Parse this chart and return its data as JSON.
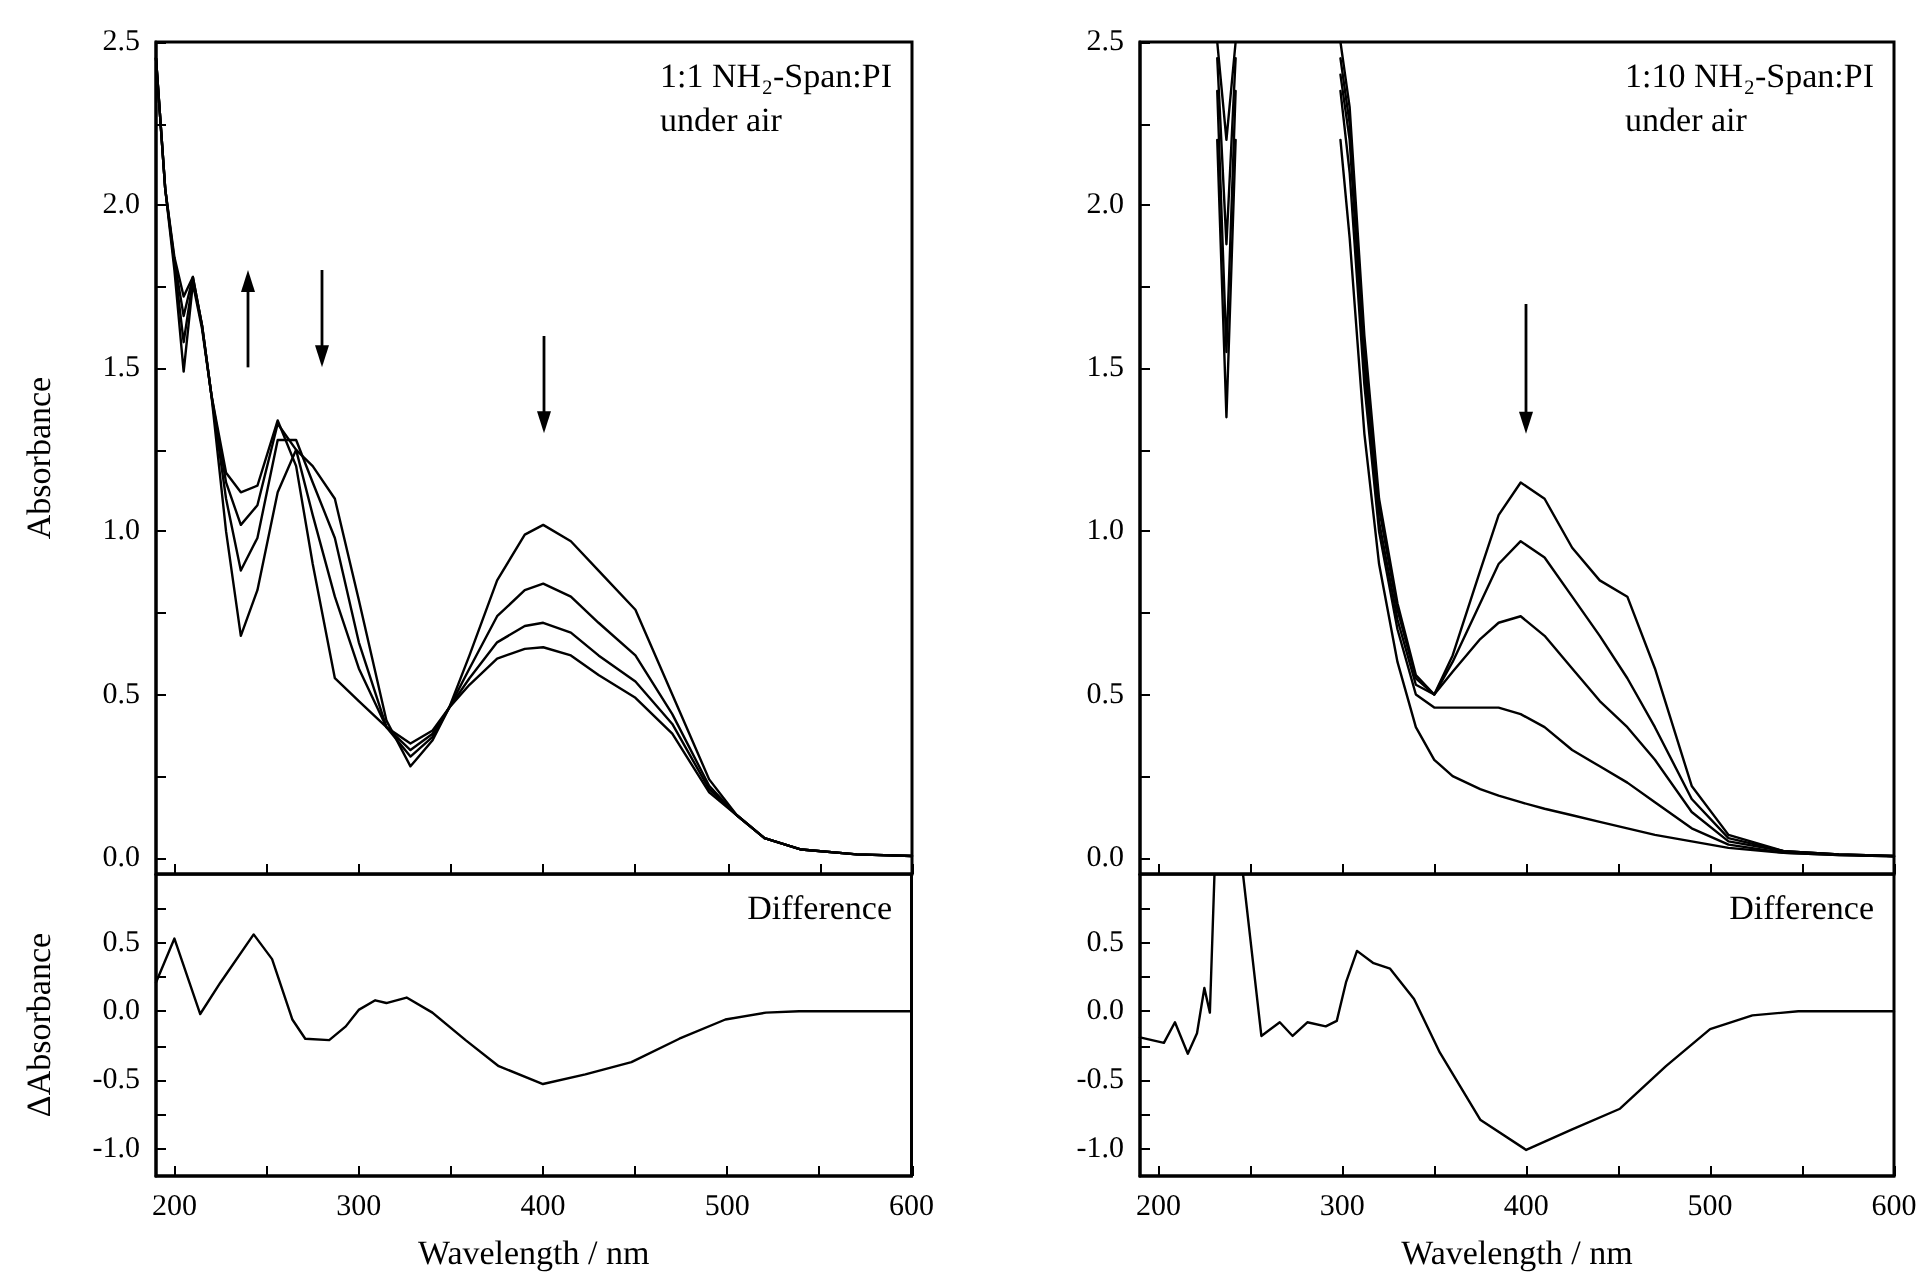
{
  "chart_data": [
    {
      "type": "line",
      "ylabel": "Absorbance",
      "annotations": [
        "1:1 NH₂-Span:PI",
        "under air"
      ],
      "marker": "none",
      "line_style": "solid",
      "tick_labels": "y",
      "xlim": [
        190,
        600
      ],
      "xticks": [
        200,
        {
          "value": 250,
          "label": null
        },
        300,
        {
          "value": 350,
          "label": null
        },
        400,
        {
          "value": 450,
          "label": null
        },
        500,
        {
          "value": 550,
          "label": null
        },
        600
      ],
      "ylim": [
        -0.05,
        2.5
      ],
      "yticks": [
        {
          "value": 0,
          "label": "0.0"
        },
        {
          "value": 0.25,
          "label": null
        },
        0.5,
        {
          "value": 0.75,
          "label": null
        },
        {
          "value": 1,
          "label": "1.0"
        },
        {
          "value": 1.25,
          "label": null
        },
        1.5,
        {
          "value": 1.75,
          "label": null
        },
        {
          "value": 2,
          "label": "2.0"
        },
        {
          "value": 2.25,
          "label": null
        },
        2.5
      ],
      "x": [
        190,
        195,
        200,
        205,
        210,
        215,
        220,
        228,
        236,
        245,
        256,
        266,
        275,
        287,
        300,
        315,
        328,
        340,
        349,
        360,
        375,
        390,
        400,
        415,
        430,
        450,
        470,
        490,
        505,
        520,
        540,
        570,
        600
      ],
      "series": [
        {
          "color": "#000000",
          "values": [
            2.45,
            2.05,
            1.8,
            1.49,
            1.76,
            1.62,
            1.42,
            1.0,
            0.68,
            0.82,
            1.12,
            1.25,
            1.2,
            1.1,
            0.79,
            0.42,
            0.28,
            0.36,
            0.46,
            0.62,
            0.85,
            0.99,
            1.02,
            0.97,
            0.88,
            0.76,
            0.5,
            0.24,
            0.13,
            0.06,
            0.025,
            0.01,
            0.005
          ]
        },
        {
          "color": "#000000",
          "values": [
            2.45,
            2.05,
            1.82,
            1.58,
            1.77,
            1.63,
            1.42,
            1.1,
            0.88,
            0.98,
            1.28,
            1.28,
            1.15,
            0.98,
            0.66,
            0.4,
            0.31,
            0.37,
            0.46,
            0.58,
            0.74,
            0.82,
            0.84,
            0.8,
            0.72,
            0.62,
            0.44,
            0.22,
            0.13,
            0.06,
            0.025,
            0.01,
            0.005
          ]
        },
        {
          "color": "#000000",
          "values": [
            2.45,
            2.05,
            1.83,
            1.66,
            1.78,
            1.63,
            1.42,
            1.15,
            1.02,
            1.08,
            1.33,
            1.25,
            1.05,
            0.8,
            0.58,
            0.4,
            0.33,
            0.38,
            0.46,
            0.55,
            0.66,
            0.71,
            0.72,
            0.69,
            0.62,
            0.54,
            0.41,
            0.21,
            0.13,
            0.06,
            0.025,
            0.01,
            0.005
          ]
        },
        {
          "color": "#000000",
          "values": [
            2.45,
            2.05,
            1.84,
            1.72,
            1.78,
            1.63,
            1.42,
            1.18,
            1.12,
            1.14,
            1.34,
            1.2,
            0.9,
            0.55,
            0.48,
            0.4,
            0.35,
            0.39,
            0.46,
            0.53,
            0.61,
            0.64,
            0.645,
            0.62,
            0.56,
            0.49,
            0.38,
            0.2,
            0.13,
            0.06,
            0.025,
            0.01,
            0.005
          ]
        }
      ]
    },
    {
      "type": "line",
      "annotations": [
        "1:10 NH₂-Span:PI",
        "under air"
      ],
      "marker": "none",
      "line_style": "solid",
      "tick_labels": "y",
      "xlim": [
        190,
        600
      ],
      "xticks": [
        200,
        {
          "value": 250,
          "label": null
        },
        300,
        {
          "value": 350,
          "label": null
        },
        400,
        {
          "value": 450,
          "label": null
        },
        500,
        {
          "value": 550,
          "label": null
        },
        600
      ],
      "ylim": [
        -0.05,
        2.5
      ],
      "yticks": [
        {
          "value": 0,
          "label": "0.0"
        },
        {
          "value": 0.25,
          "label": null
        },
        0.5,
        {
          "value": 0.75,
          "label": null
        },
        {
          "value": 1,
          "label": "1.0"
        },
        {
          "value": 1.25,
          "label": null
        },
        1.5,
        {
          "value": 1.75,
          "label": null
        },
        {
          "value": 2,
          "label": "2.0"
        },
        {
          "value": 2.25,
          "label": null
        },
        2.5
      ],
      "x": [
        232,
        237,
        242,
        270,
        299,
        304,
        312,
        320,
        330,
        340,
        350,
        360,
        375,
        385,
        397,
        410,
        425,
        440,
        455,
        470,
        490,
        510,
        540,
        570,
        600
      ],
      "series": [
        {
          "color": "#000000",
          "values": [
            2.2,
            1.35,
            2.2,
            null,
            2.5,
            2.3,
            1.6,
            1.1,
            0.78,
            0.56,
            0.5,
            0.62,
            0.88,
            1.05,
            1.15,
            1.1,
            0.95,
            0.85,
            0.8,
            0.58,
            0.22,
            0.07,
            0.02,
            0.01,
            0.005
          ]
        },
        {
          "color": "#000000",
          "values": [
            2.35,
            1.55,
            2.35,
            null,
            2.45,
            2.25,
            1.55,
            1.07,
            0.76,
            0.55,
            0.5,
            0.6,
            0.78,
            0.9,
            0.97,
            0.92,
            0.8,
            0.68,
            0.55,
            0.4,
            0.18,
            0.06,
            0.02,
            0.01,
            0.005
          ]
        },
        {
          "color": "#000000",
          "values": [
            2.45,
            1.88,
            2.45,
            null,
            2.4,
            2.2,
            1.5,
            1.03,
            0.73,
            0.53,
            0.5,
            0.57,
            0.67,
            0.72,
            0.74,
            0.68,
            0.58,
            0.48,
            0.4,
            0.3,
            0.14,
            0.05,
            0.02,
            0.01,
            0.005
          ]
        },
        {
          "color": "#000000",
          "values": [
            2.5,
            2.2,
            2.5,
            null,
            2.35,
            2.1,
            1.45,
            1.0,
            0.7,
            0.5,
            0.46,
            0.46,
            0.46,
            0.46,
            0.44,
            0.4,
            0.33,
            0.28,
            0.23,
            0.17,
            0.09,
            0.04,
            0.015,
            0.008,
            0.004
          ]
        },
        {
          "color": "#000000",
          "values": [
            null,
            null,
            null,
            null,
            2.2,
            1.9,
            1.3,
            0.9,
            0.6,
            0.4,
            0.3,
            0.25,
            0.21,
            0.19,
            0.17,
            0.15,
            0.13,
            0.11,
            0.09,
            0.07,
            0.05,
            0.03,
            0.015,
            0.008,
            0.004
          ]
        }
      ]
    },
    {
      "type": "line",
      "xlabel": "Wavelength / nm",
      "ylabel": "ΔAbsorbance",
      "annotations": [
        "Difference"
      ],
      "marker": "none",
      "line_style": "solid",
      "xlim": [
        190,
        600
      ],
      "xticks": [
        200,
        {
          "value": 250,
          "label": null
        },
        300,
        {
          "value": 350,
          "label": null
        },
        400,
        {
          "value": 450,
          "label": null
        },
        500,
        {
          "value": 550,
          "label": null
        },
        600
      ],
      "ylim": [
        -1.2,
        1.0
      ],
      "yticks": [
        {
          "value": -1,
          "label": "-1.0"
        },
        {
          "value": -0.75,
          "label": null
        },
        -0.5,
        {
          "value": -0.25,
          "label": null
        },
        {
          "value": 0,
          "label": "0.0"
        },
        {
          "value": 0.25,
          "label": null
        },
        0.5,
        {
          "value": 0.75,
          "label": null
        }
      ],
      "x": [
        190,
        200,
        214,
        225,
        243,
        253,
        264,
        271,
        284,
        293,
        300,
        309,
        315,
        326,
        340,
        358,
        376,
        400,
        423,
        448,
        474,
        499,
        521,
        539,
        600
      ],
      "series": [
        {
          "color": "#000000",
          "values": [
            0.21,
            0.53,
            -0.02,
            0.21,
            0.56,
            0.38,
            -0.06,
            -0.2,
            -0.21,
            -0.11,
            0.01,
            0.08,
            0.06,
            0.1,
            -0.01,
            -0.21,
            -0.4,
            -0.53,
            -0.46,
            -0.37,
            -0.2,
            -0.06,
            -0.01,
            0.0,
            0.0
          ]
        }
      ]
    },
    {
      "type": "line",
      "xlabel": "Wavelength / nm",
      "annotations": [
        "Difference"
      ],
      "marker": "none",
      "line_style": "solid",
      "xlim": [
        190,
        600
      ],
      "xticks": [
        200,
        {
          "value": 250,
          "label": null
        },
        300,
        {
          "value": 350,
          "label": null
        },
        400,
        {
          "value": 450,
          "label": null
        },
        500,
        {
          "value": 550,
          "label": null
        },
        600
      ],
      "ylim": [
        -1.2,
        1.0
      ],
      "yticks": [
        {
          "value": -1,
          "label": "-1.0"
        },
        {
          "value": -0.75,
          "label": null
        },
        -0.5,
        {
          "value": -0.25,
          "label": null
        },
        {
          "value": 0,
          "label": "0.0"
        },
        {
          "value": 0.25,
          "label": null
        },
        0.5,
        {
          "value": 0.75,
          "label": null
        }
      ],
      "x": [
        190,
        203,
        209,
        216,
        221,
        225,
        228,
        230.5,
        238,
        246,
        256,
        266,
        273,
        281,
        291,
        297,
        302,
        308,
        317,
        326,
        339,
        353,
        375,
        400,
        425,
        451,
        476,
        500,
        523,
        548,
        600
      ],
      "series": [
        {
          "color": "#000000",
          "values": [
            -0.19,
            -0.23,
            -0.08,
            -0.31,
            -0.16,
            0.17,
            -0.01,
            1.0,
            null,
            1.0,
            -0.18,
            -0.08,
            -0.18,
            -0.08,
            -0.11,
            -0.07,
            0.21,
            0.44,
            0.35,
            0.31,
            0.09,
            -0.3,
            -0.79,
            -1.01,
            -0.86,
            -0.71,
            -0.4,
            -0.13,
            -0.03,
            0.0,
            0.0
          ]
        }
      ]
    }
  ]
}
